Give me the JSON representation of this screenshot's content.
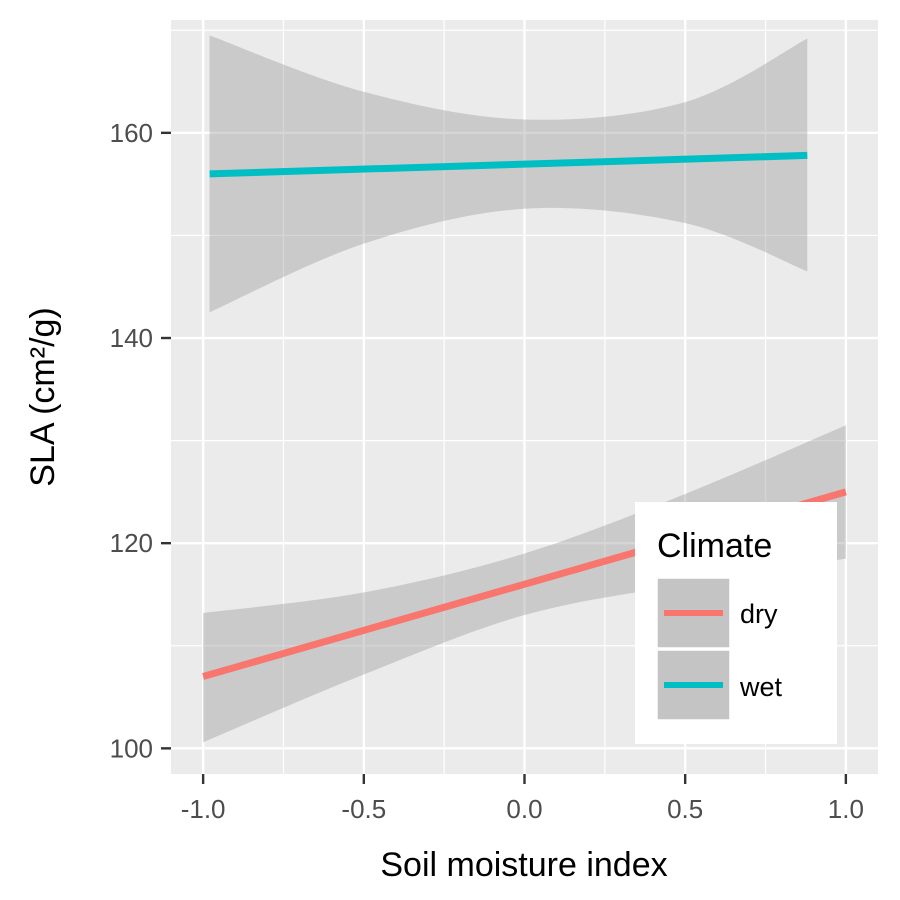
{
  "chart_data": {
    "type": "line",
    "title": "",
    "xlabel": "Soil moisture index",
    "ylabel": "SLA (cm²/g)",
    "xlim": [
      -1.1,
      1.1
    ],
    "ylim": [
      97.5,
      171
    ],
    "x_ticks": [
      -1.0,
      -0.5,
      0.0,
      0.5,
      1.0
    ],
    "x_tick_labels": [
      "-1.0",
      "-0.5",
      "0.0",
      "0.5",
      "1.0"
    ],
    "y_ticks": [
      100,
      120,
      140,
      160
    ],
    "y_tick_labels": [
      "100",
      "120",
      "140",
      "160"
    ],
    "grid": true,
    "legend": {
      "title": "Climate",
      "position": "bottom-right"
    },
    "series": [
      {
        "name": "dry",
        "color": "#F8766D",
        "x": [
          -1.0,
          1.0
        ],
        "y": [
          107.0,
          125.0
        ],
        "ci": {
          "x": [
            -1.0,
            -0.5,
            0.0,
            0.5,
            1.0
          ],
          "upper": [
            113.2,
            115.2,
            119.0,
            124.8,
            131.5
          ],
          "lower": [
            100.6,
            107.2,
            113.0,
            116.0,
            118.5
          ]
        }
      },
      {
        "name": "wet",
        "color": "#00BFC4",
        "x": [
          -0.98,
          0.88
        ],
        "y": [
          156.0,
          157.8
        ],
        "ci": {
          "x": [
            -0.98,
            -0.5,
            0.0,
            0.5,
            0.88
          ],
          "upper": [
            169.5,
            164.0,
            161.3,
            163.0,
            169.2
          ],
          "lower": [
            142.5,
            149.2,
            152.6,
            151.2,
            146.5
          ]
        }
      }
    ]
  }
}
